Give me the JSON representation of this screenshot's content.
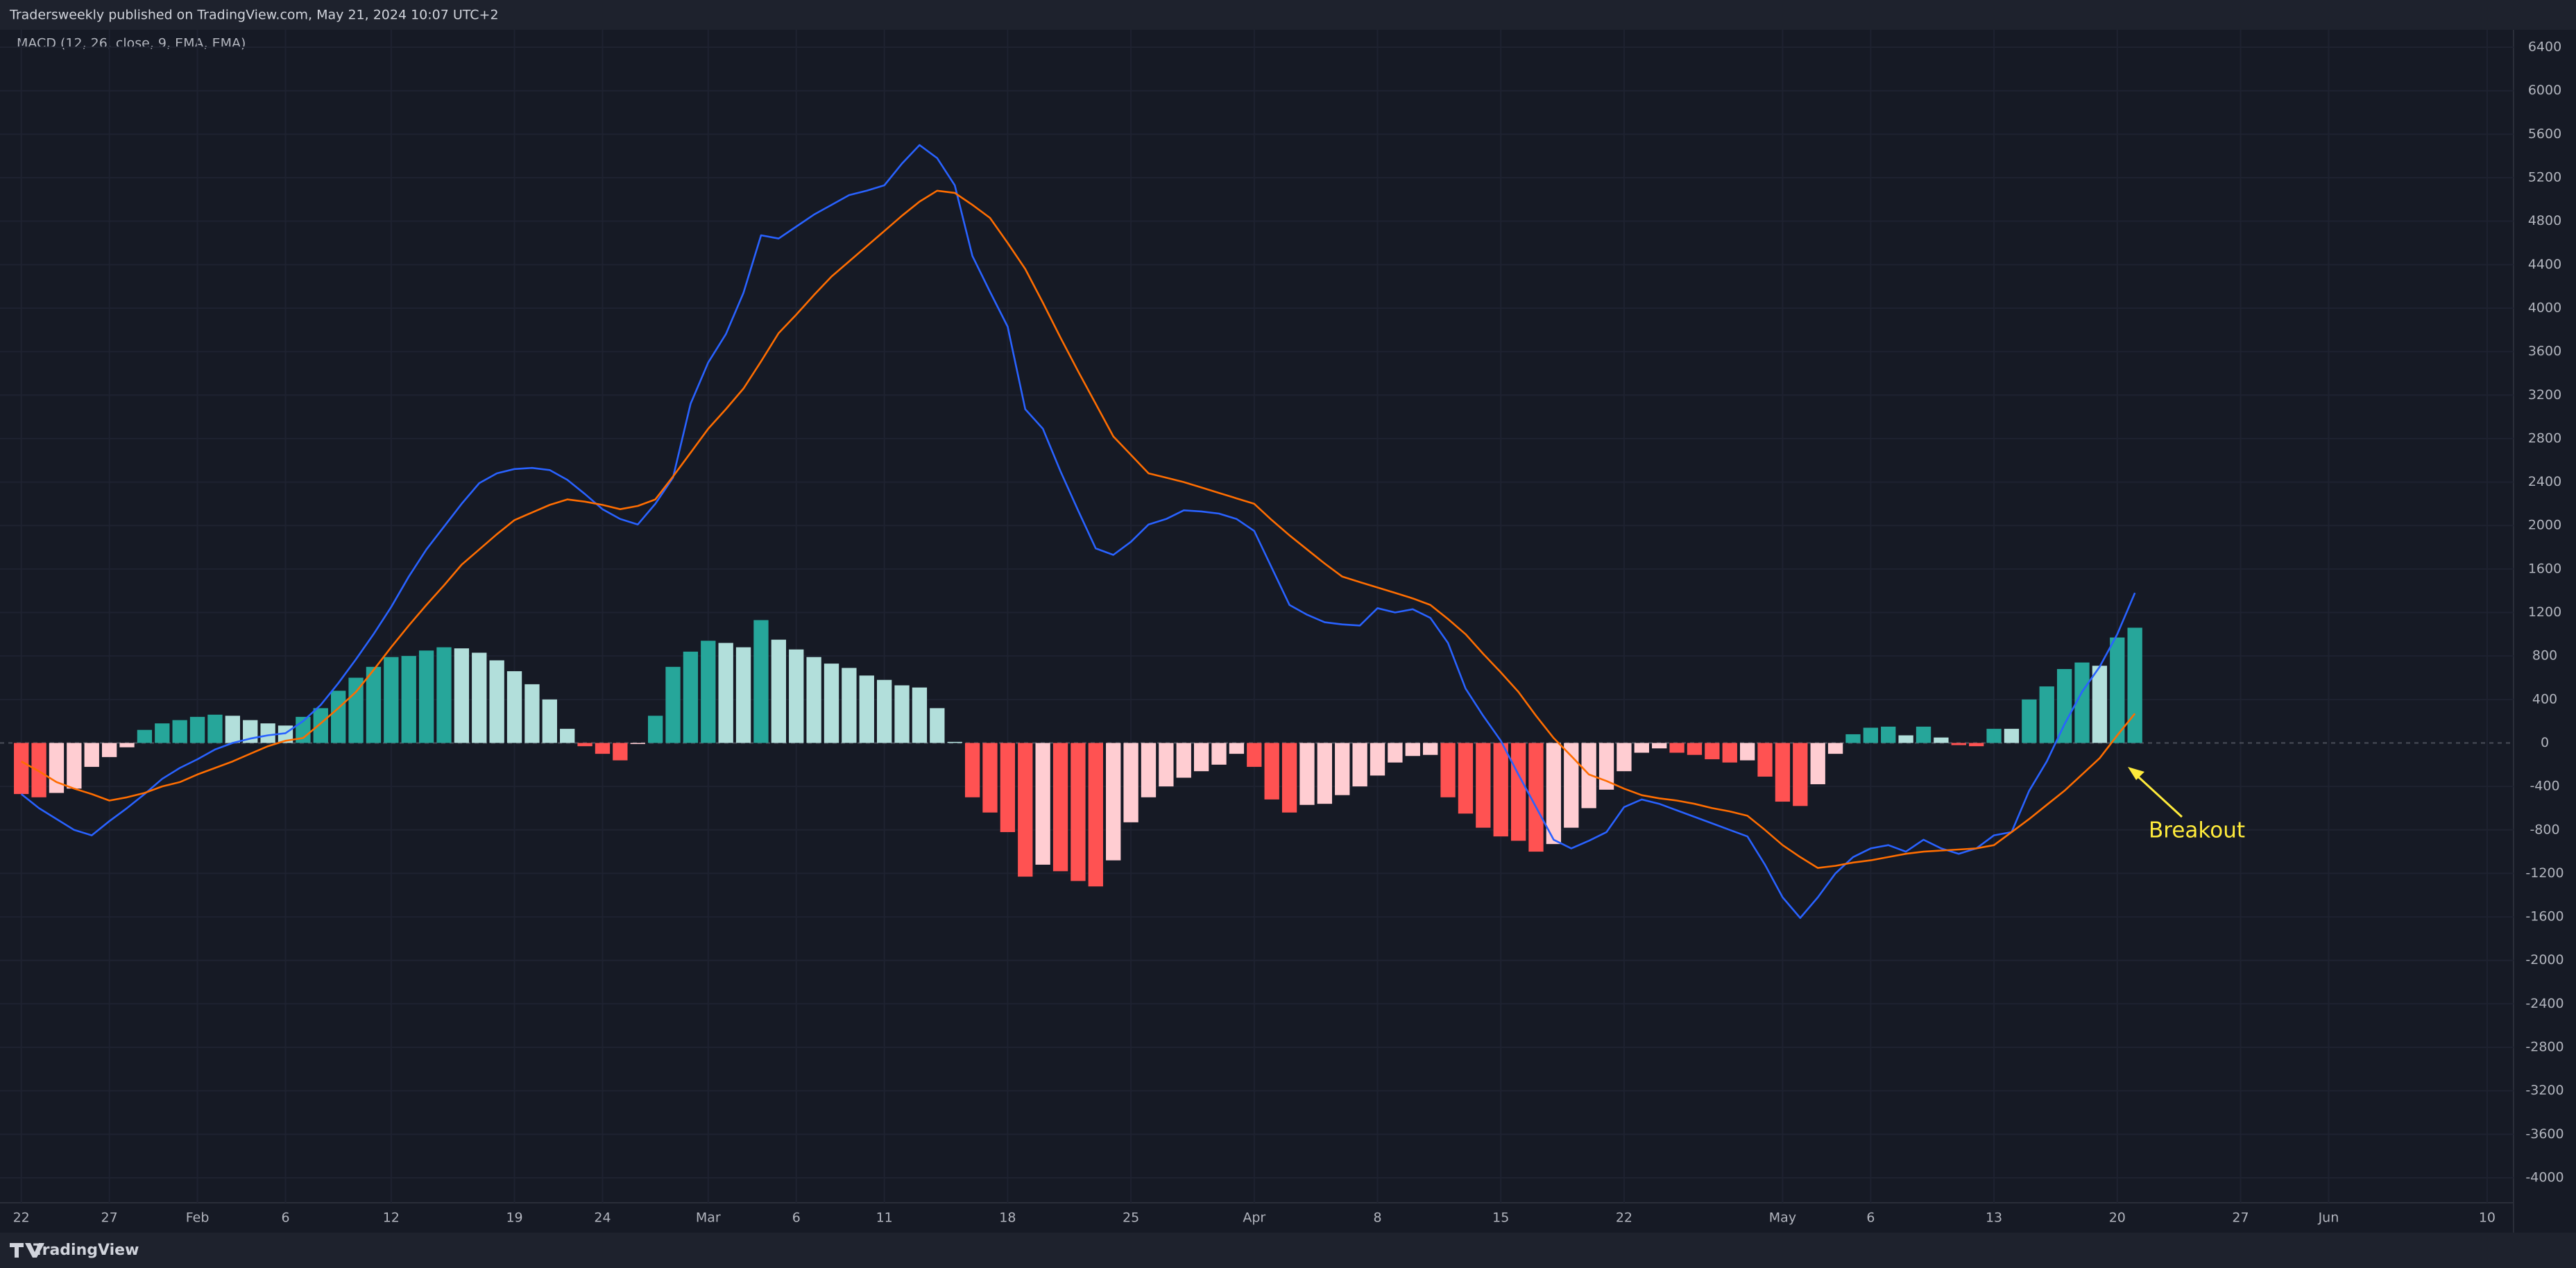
{
  "header": {
    "publisher": "Tradersweekly published on TradingView.com, May 21, 2024 10:07 UTC+2"
  },
  "footer": {
    "brand": "TradingView"
  },
  "chart_data": {
    "type": "macd",
    "title": "MACD (12, 26, close, 9, EMA, EMA)",
    "annotations": [
      "Breakout"
    ],
    "categories": [
      "22",
      null,
      null,
      null,
      null,
      "27",
      null,
      null,
      null,
      null,
      "Feb",
      null,
      null,
      null,
      null,
      "6",
      null,
      null,
      null,
      null,
      null,
      "12",
      null,
      null,
      null,
      null,
      null,
      null,
      "19",
      null,
      null,
      null,
      null,
      "24",
      null,
      null,
      null,
      null,
      null,
      "Mar",
      null,
      null,
      null,
      null,
      "6",
      null,
      null,
      null,
      null,
      "11",
      null,
      null,
      null,
      null,
      null,
      null,
      "18",
      null,
      null,
      null,
      null,
      null,
      null,
      "25",
      null,
      null,
      null,
      null,
      null,
      null,
      "Apr",
      null,
      null,
      null,
      null,
      null,
      null,
      "8",
      null,
      null,
      null,
      null,
      null,
      null,
      "15",
      null,
      null,
      null,
      null,
      null,
      null,
      "22",
      null,
      null,
      null,
      null,
      null,
      null,
      null,
      null,
      "May",
      null,
      null,
      null,
      null,
      "6",
      null,
      null,
      null,
      null,
      null,
      null,
      "13",
      null,
      null,
      null,
      null,
      null,
      null,
      "20",
      null,
      null,
      null,
      null,
      null,
      null,
      "27",
      null,
      null,
      null,
      null,
      "Jun",
      null,
      null,
      null,
      null,
      null,
      null,
      null,
      null,
      "10",
      null
    ],
    "histogram": {
      "colors": {
        "grow_above": "#26a69a",
        "fall_above": "#b2dfdb",
        "grow_below": "#ffcdd2",
        "fall_below": "#ff5252"
      },
      "values": [
        -470,
        -500,
        -460,
        -420,
        -220,
        -130,
        -40,
        120,
        180,
        210,
        240,
        260,
        250,
        210,
        180,
        160,
        240,
        320,
        480,
        600,
        700,
        790,
        800,
        850,
        880,
        870,
        830,
        760,
        660,
        540,
        400,
        130,
        -30,
        -100,
        -160,
        -10,
        250,
        700,
        840,
        940,
        920,
        880,
        1130,
        950,
        860,
        790,
        730,
        690,
        620,
        580,
        530,
        510,
        320,
        10,
        -500,
        -640,
        -820,
        -1230,
        -1120,
        -1180,
        -1270,
        -1320,
        -1080,
        -730,
        -500,
        -400,
        -320,
        -260,
        -200,
        -100,
        -220,
        -520,
        -640,
        -570,
        -560,
        -480,
        -400,
        -300,
        -180,
        -120,
        -110,
        -500,
        -650,
        -780,
        -860,
        -900,
        -1000,
        -930,
        -780,
        -600,
        -430,
        -260,
        -90,
        -50,
        -90,
        -110,
        -150,
        -180,
        -160,
        -310,
        -540,
        -580,
        -380,
        -100,
        80,
        140,
        150,
        70,
        150,
        50,
        -20,
        -30,
        130,
        130,
        400,
        520,
        680,
        740,
        710,
        970,
        1060,
        null,
        null,
        null,
        null,
        null,
        null,
        null,
        null,
        null,
        null,
        null,
        null,
        null,
        null,
        null,
        null,
        null,
        null,
        null,
        null,
        null
      ]
    },
    "series": [
      {
        "color": "#2962ff",
        "values": [
          -470,
          -600,
          -700,
          -800,
          -850,
          -720,
          -600,
          -470,
          -330,
          -230,
          -150,
          -60,
          0,
          40,
          70,
          90,
          200,
          350,
          550,
          770,
          1000,
          1250,
          1530,
          1780,
          1990,
          2200,
          2390,
          2480,
          2520,
          2530,
          2510,
          2420,
          2290,
          2150,
          2060,
          2010,
          2200,
          2440,
          3120,
          3500,
          3760,
          4140,
          4670,
          4640,
          4750,
          4860,
          4950,
          5040,
          5080,
          5130,
          5330,
          5500,
          5380,
          5130,
          4480,
          4150,
          3830,
          3070,
          2890,
          2500,
          2140,
          1790,
          1730,
          1850,
          2010,
          2060,
          2140,
          2130,
          2110,
          2060,
          1950,
          1610,
          1270,
          1180,
          1110,
          1090,
          1080,
          1240,
          1200,
          1230,
          1150,
          920,
          500,
          250,
          20,
          -290,
          -590,
          -890,
          -970,
          -900,
          -820,
          -590,
          -520,
          -560,
          -620,
          -680,
          -740,
          -800,
          -860,
          -1120,
          -1420,
          -1610,
          -1420,
          -1200,
          -1050,
          -970,
          -940,
          -1000,
          -890,
          -970,
          -1020,
          -970,
          -850,
          -820,
          -440,
          -170,
          170,
          470,
          700,
          1000,
          1380,
          null,
          null,
          null,
          null,
          null,
          null,
          null,
          null,
          null,
          null,
          null,
          null,
          null,
          null,
          null,
          null,
          null,
          null,
          null,
          null,
          null
        ]
      },
      {
        "color": "#ff6d00",
        "values": [
          -170,
          -260,
          -360,
          -420,
          -470,
          -530,
          -500,
          -460,
          -400,
          -360,
          -290,
          -230,
          -170,
          -100,
          -30,
          20,
          45,
          180,
          320,
          470,
          670,
          880,
          1080,
          1270,
          1450,
          1640,
          1780,
          1920,
          2050,
          2120,
          2190,
          2240,
          2220,
          2190,
          2150,
          2180,
          2240,
          2450,
          2670,
          2890,
          3070,
          3260,
          3510,
          3770,
          3940,
          4120,
          4290,
          4430,
          4570,
          4710,
          4850,
          4980,
          5080,
          5060,
          4950,
          4830,
          4600,
          4360,
          4050,
          3730,
          3420,
          3120,
          2820,
          2650,
          2480,
          2440,
          2400,
          2350,
          2300,
          2250,
          2200,
          2050,
          1910,
          1780,
          1650,
          1530,
          1480,
          1430,
          1380,
          1330,
          1270,
          1140,
          1000,
          820,
          650,
          470,
          250,
          45,
          -120,
          -290,
          -350,
          -420,
          -480,
          -510,
          -530,
          -560,
          -600,
          -630,
          -670,
          -800,
          -940,
          -1050,
          -1150,
          -1130,
          -1100,
          -1080,
          -1050,
          -1020,
          -1000,
          -990,
          -980,
          -970,
          -940,
          -820,
          -700,
          -570,
          -440,
          -290,
          -140,
          70,
          270,
          null,
          null,
          null,
          null,
          null,
          null,
          null,
          null,
          null,
          null,
          null,
          null,
          null,
          null,
          null,
          null,
          null,
          null,
          null,
          null,
          null
        ]
      }
    ],
    "ylim": [
      -4230,
      6560
    ],
    "yticks": [
      6400,
      6000,
      5600,
      5200,
      4800,
      4400,
      4000,
      3600,
      3200,
      2800,
      2400,
      2000,
      1600,
      1200,
      800,
      400,
      0,
      -400,
      -800,
      -1200,
      -1600,
      -2000,
      -2400,
      -2800,
      -3200,
      -3600,
      -4000
    ],
    "grid": true
  }
}
